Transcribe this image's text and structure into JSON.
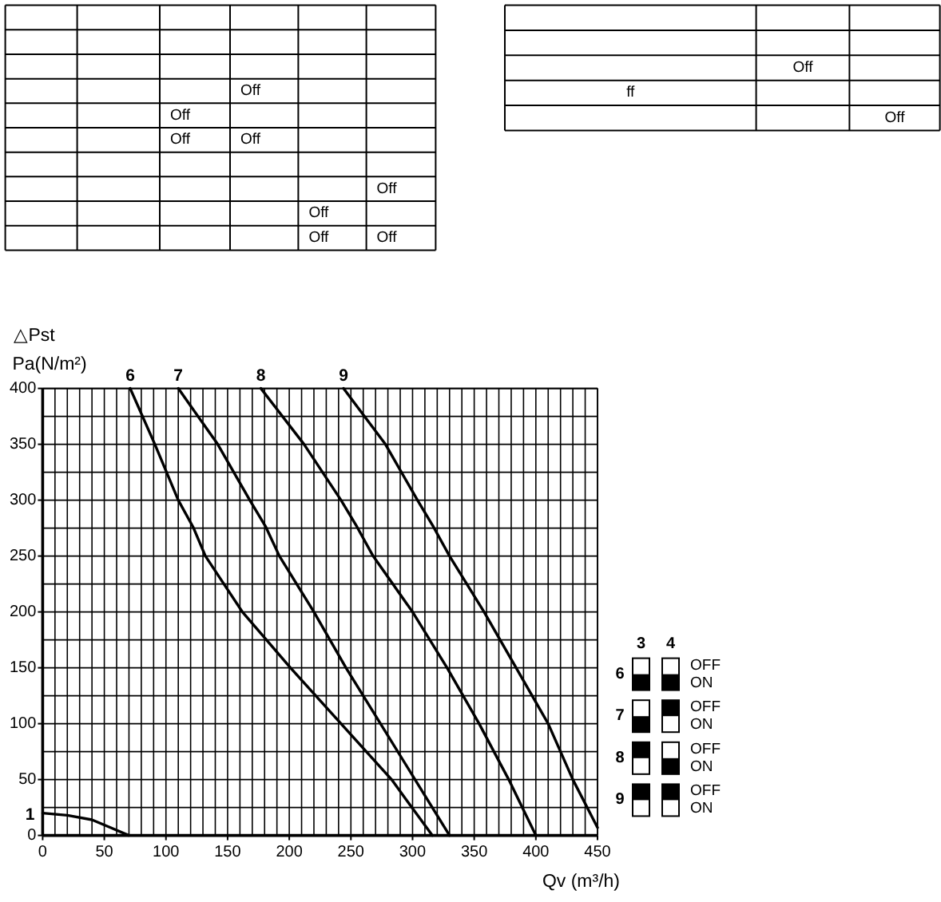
{
  "chart_data": [
    {
      "type": "other",
      "cell_labels": [
        [
          null,
          null,
          null,
          null,
          null,
          null
        ],
        [
          null,
          null,
          null,
          null,
          null,
          null
        ],
        [
          null,
          null,
          null,
          null,
          null,
          null
        ],
        [
          null,
          null,
          null,
          "Off",
          null,
          null
        ],
        [
          null,
          null,
          "Off",
          null,
          null,
          null
        ],
        [
          null,
          null,
          "Off",
          "Off",
          null,
          null
        ],
        [
          null,
          null,
          null,
          null,
          null,
          null
        ],
        [
          null,
          null,
          null,
          null,
          null,
          "Off"
        ],
        [
          null,
          null,
          null,
          null,
          "Off",
          null
        ],
        [
          null,
          null,
          null,
          null,
          "Off",
          "Off"
        ]
      ]
    },
    {
      "type": "other",
      "cell_labels": [
        [
          null,
          null,
          null
        ],
        [
          null,
          null,
          null
        ],
        [
          null,
          "Off",
          null
        ],
        [
          "ff",
          null,
          null
        ],
        [
          null,
          null,
          "Off"
        ]
      ]
    },
    {
      "type": "line",
      "xlabel": "Qv (m³/h)",
      "ylabel": "△Pst\nPa(N/m²)",
      "xlim": [
        0,
        450
      ],
      "ylim": [
        0,
        400
      ],
      "xticks": [
        0,
        {
          "value": 10,
          "label": null
        },
        {
          "value": 20,
          "label": null
        },
        {
          "value": 30,
          "label": null
        },
        {
          "value": 40,
          "label": null
        },
        50,
        {
          "value": 60,
          "label": null
        },
        {
          "value": 70,
          "label": null
        },
        {
          "value": 80,
          "label": null
        },
        {
          "value": 90,
          "label": null
        },
        100,
        {
          "value": 110,
          "label": null
        },
        {
          "value": 120,
          "label": null
        },
        {
          "value": 130,
          "label": null
        },
        {
          "value": 140,
          "label": null
        },
        150,
        {
          "value": 160,
          "label": null
        },
        {
          "value": 170,
          "label": null
        },
        {
          "value": 180,
          "label": null
        },
        {
          "value": 190,
          "label": null
        },
        200,
        {
          "value": 210,
          "label": null
        },
        {
          "value": 220,
          "label": null
        },
        {
          "value": 230,
          "label": null
        },
        {
          "value": 240,
          "label": null
        },
        250,
        {
          "value": 260,
          "label": null
        },
        {
          "value": 270,
          "label": null
        },
        {
          "value": 280,
          "label": null
        },
        {
          "value": 290,
          "label": null
        },
        300,
        {
          "value": 310,
          "label": null
        },
        {
          "value": 320,
          "label": null
        },
        {
          "value": 330,
          "label": null
        },
        {
          "value": 340,
          "label": null
        },
        350,
        {
          "value": 360,
          "label": null
        },
        {
          "value": 370,
          "label": null
        },
        {
          "value": 380,
          "label": null
        },
        {
          "value": 390,
          "label": null
        },
        400,
        {
          "value": 410,
          "label": null
        },
        {
          "value": 420,
          "label": null
        },
        {
          "value": 430,
          "label": null
        },
        {
          "value": 440,
          "label": null
        },
        450
      ],
      "yticks": [
        0,
        {
          "value": 25,
          "label": null
        },
        50,
        {
          "value": 75,
          "label": null
        },
        100,
        {
          "value": 125,
          "label": null
        },
        150,
        {
          "value": 175,
          "label": null
        },
        200,
        {
          "value": 225,
          "label": null
        },
        250,
        {
          "value": 275,
          "label": null
        },
        300,
        {
          "value": 325,
          "label": null
        },
        350,
        {
          "value": 375,
          "label": null
        },
        400
      ],
      "grid": true,
      "legend": "right",
      "series": [
        {
          "name": "1",
          "color": "#000000",
          "x": [
            0,
            20,
            40,
            55,
            70
          ],
          "values": [
            20,
            18,
            14,
            7,
            0
          ]
        },
        {
          "name": "6",
          "color": "#000000",
          "x": [
            71,
            91,
            110,
            122,
            132,
            162,
            201,
            242,
            283,
            316
          ],
          "values": [
            400,
            350,
            300,
            276,
            250,
            200,
            150,
            100,
            50,
            0
          ]
        },
        {
          "name": "7",
          "color": "#000000",
          "x": [
            110,
            142,
            168,
            181,
            192,
            220,
            246,
            274,
            302,
            330
          ],
          "values": [
            400,
            350,
            300,
            276,
            250,
            200,
            150,
            100,
            50,
            0
          ]
        },
        {
          "name": "8",
          "color": "#000000",
          "x": [
            177,
            212,
            242,
            255,
            268,
            300,
            328,
            354,
            378,
            400
          ],
          "values": [
            400,
            350,
            300,
            276,
            250,
            200,
            150,
            100,
            50,
            0
          ]
        },
        {
          "name": "9",
          "color": "#000000",
          "x": [
            244,
            278,
            304,
            317,
            330,
            358,
            384,
            410,
            430,
            450
          ],
          "values": [
            400,
            350,
            300,
            276,
            250,
            200,
            150,
            100,
            50,
            7
          ]
        }
      ],
      "annotations": [
        "3",
        "4",
        "OFF",
        "ON",
        "OFF",
        "ON",
        "OFF",
        "ON",
        "OFF",
        "ON"
      ]
    }
  ]
}
